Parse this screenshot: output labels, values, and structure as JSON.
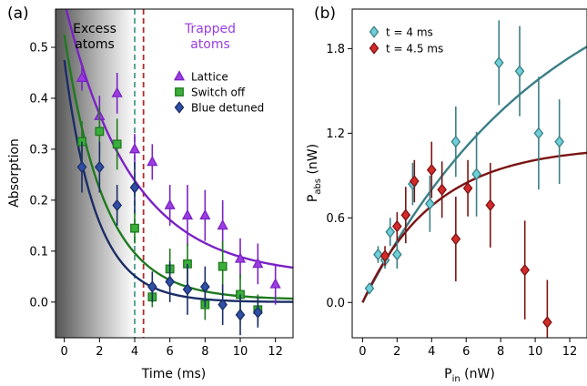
{
  "chart_data": [
    {
      "panel_label": "(a)",
      "type": "scatter",
      "xlabel": "Time (ms)",
      "ylabel": "Absorption",
      "xlim": [
        -0.5,
        13
      ],
      "ylim": [
        -0.07,
        0.575
      ],
      "xticks": [
        0,
        2,
        4,
        6,
        8,
        10,
        12
      ],
      "yticks": [
        0.0,
        0.1,
        0.2,
        0.3,
        0.4,
        0.5
      ],
      "xtick_labels": [
        "0",
        "2",
        "4",
        "6",
        "8",
        "10",
        "12"
      ],
      "ytick_labels": [
        "0.0",
        "0.1",
        "0.2",
        "0.3",
        "0.4",
        "0.5"
      ],
      "grid": false,
      "legend_position": "top-right",
      "vlines": [
        {
          "x": 4.0,
          "color": "#4a9a8a"
        },
        {
          "x": 4.5,
          "color": "#b02a2a"
        }
      ],
      "shaded_region": {
        "x0": -0.5,
        "x1": 4.0,
        "from": "#555555",
        "to": "#ffffff"
      },
      "annotations": [
        {
          "lines": [
            "Excess",
            "atoms"
          ],
          "color": "#000000",
          "x": 2.0,
          "y": 0.545
        },
        {
          "lines": [
            "Trapped",
            "atoms"
          ],
          "color": "#9b3de0",
          "x": 8.5,
          "y": 0.545
        }
      ],
      "series": [
        {
          "name": "Lattice",
          "marker": "triangle",
          "color": "#9b3de0",
          "edge": "#7a22c4",
          "x": [
            1,
            2,
            3,
            4,
            5,
            6,
            7,
            8,
            9,
            10,
            11,
            12
          ],
          "y": [
            0.44,
            0.365,
            0.41,
            0.3,
            0.275,
            0.19,
            0.17,
            0.17,
            0.15,
            0.085,
            0.075,
            0.035
          ],
          "err": [
            0.025,
            0.04,
            0.04,
            0.03,
            0.035,
            0.04,
            0.06,
            0.05,
            0.05,
            0.04,
            0.04,
            0.04
          ],
          "fit": {
            "a": 0.54,
            "tau": 3.8,
            "c": 0.05
          }
        },
        {
          "name": "Switch off",
          "marker": "square",
          "color": "#3aae3a",
          "edge": "#1f7a1f",
          "x": [
            1,
            2,
            3,
            4,
            5,
            6,
            7,
            8,
            9,
            10,
            11
          ],
          "y": [
            0.315,
            0.335,
            0.31,
            0.145,
            0.01,
            0.065,
            0.075,
            -0.005,
            0.07,
            0.015,
            -0.015
          ],
          "err": [
            0.04,
            0.05,
            0.05,
            0.03,
            0.02,
            0.04,
            0.04,
            0.03,
            0.05,
            0.04,
            0.03
          ],
          "fit": {
            "a": 0.52,
            "tau": 2.3,
            "c": 0.005
          }
        },
        {
          "name": "Blue detuned",
          "marker": "diamond",
          "color": "#2f4fa5",
          "edge": "#1a2d66",
          "x": [
            1,
            2,
            3,
            4,
            5,
            6,
            7,
            8,
            9,
            10,
            11
          ],
          "y": [
            0.265,
            0.265,
            0.19,
            0.225,
            0.03,
            0.04,
            0.025,
            0.03,
            -0.005,
            -0.025,
            -0.02
          ],
          "err": [
            0.05,
            0.05,
            0.04,
            0.05,
            0.03,
            0.04,
            0.05,
            0.04,
            0.04,
            0.04,
            0.03
          ],
          "fit": {
            "a": 0.475,
            "tau": 1.8,
            "c": 0.0
          }
        }
      ]
    },
    {
      "panel_label": "(b)",
      "type": "scatter",
      "xlabel_main": "P",
      "xlabel_sub": "in",
      "xlabel_unit": " (nW)",
      "ylabel_main": "P",
      "ylabel_sub": "abs",
      "ylabel_unit": " (nW)",
      "xlim": [
        -0.6,
        13
      ],
      "ylim": [
        -0.25,
        2.08
      ],
      "xticks": [
        0,
        2,
        4,
        6,
        8,
        10,
        12
      ],
      "yticks": [
        0.0,
        0.6,
        1.2,
        1.8
      ],
      "xtick_labels": [
        "0",
        "2",
        "4",
        "6",
        "8",
        "10",
        "12"
      ],
      "ytick_labels": [
        "0.0",
        "0.6",
        "1.2",
        "1.8"
      ],
      "grid": false,
      "legend_position": "top-left",
      "series": [
        {
          "name": "t = 4 ms",
          "marker": "diamond",
          "color": "#6ecfd8",
          "edge": "#3b7f86",
          "x": [
            0.4,
            0.9,
            1.3,
            1.6,
            2.0,
            2.9,
            3.9,
            5.4,
            6.6,
            7.9,
            9.1,
            10.2,
            11.4
          ],
          "y": [
            0.1,
            0.34,
            0.3,
            0.5,
            0.34,
            0.84,
            0.7,
            1.14,
            0.91,
            1.7,
            1.64,
            1.2,
            1.14
          ],
          "err": [
            0.03,
            0.06,
            0.06,
            0.1,
            0.1,
            0.15,
            0.2,
            0.25,
            0.3,
            0.3,
            0.32,
            0.4,
            0.3
          ],
          "fit": {
            "vmax": 2.6,
            "k": 0.092
          }
        },
        {
          "name": "t = 4.5 ms",
          "marker": "diamond",
          "color": "#d42a2a",
          "edge": "#7a1414",
          "x": [
            1.3,
            2.0,
            2.5,
            3.0,
            4.0,
            4.6,
            5.4,
            6.1,
            7.4,
            9.4,
            10.7
          ],
          "y": [
            0.33,
            0.54,
            0.62,
            0.86,
            0.94,
            0.8,
            0.45,
            0.81,
            0.69,
            0.23,
            -0.14
          ],
          "err": [
            0.07,
            0.1,
            0.2,
            0.15,
            0.2,
            0.2,
            0.3,
            0.2,
            0.3,
            0.35,
            0.3
          ],
          "fit": {
            "vmax": 1.11,
            "k": 0.24
          }
        }
      ]
    }
  ]
}
